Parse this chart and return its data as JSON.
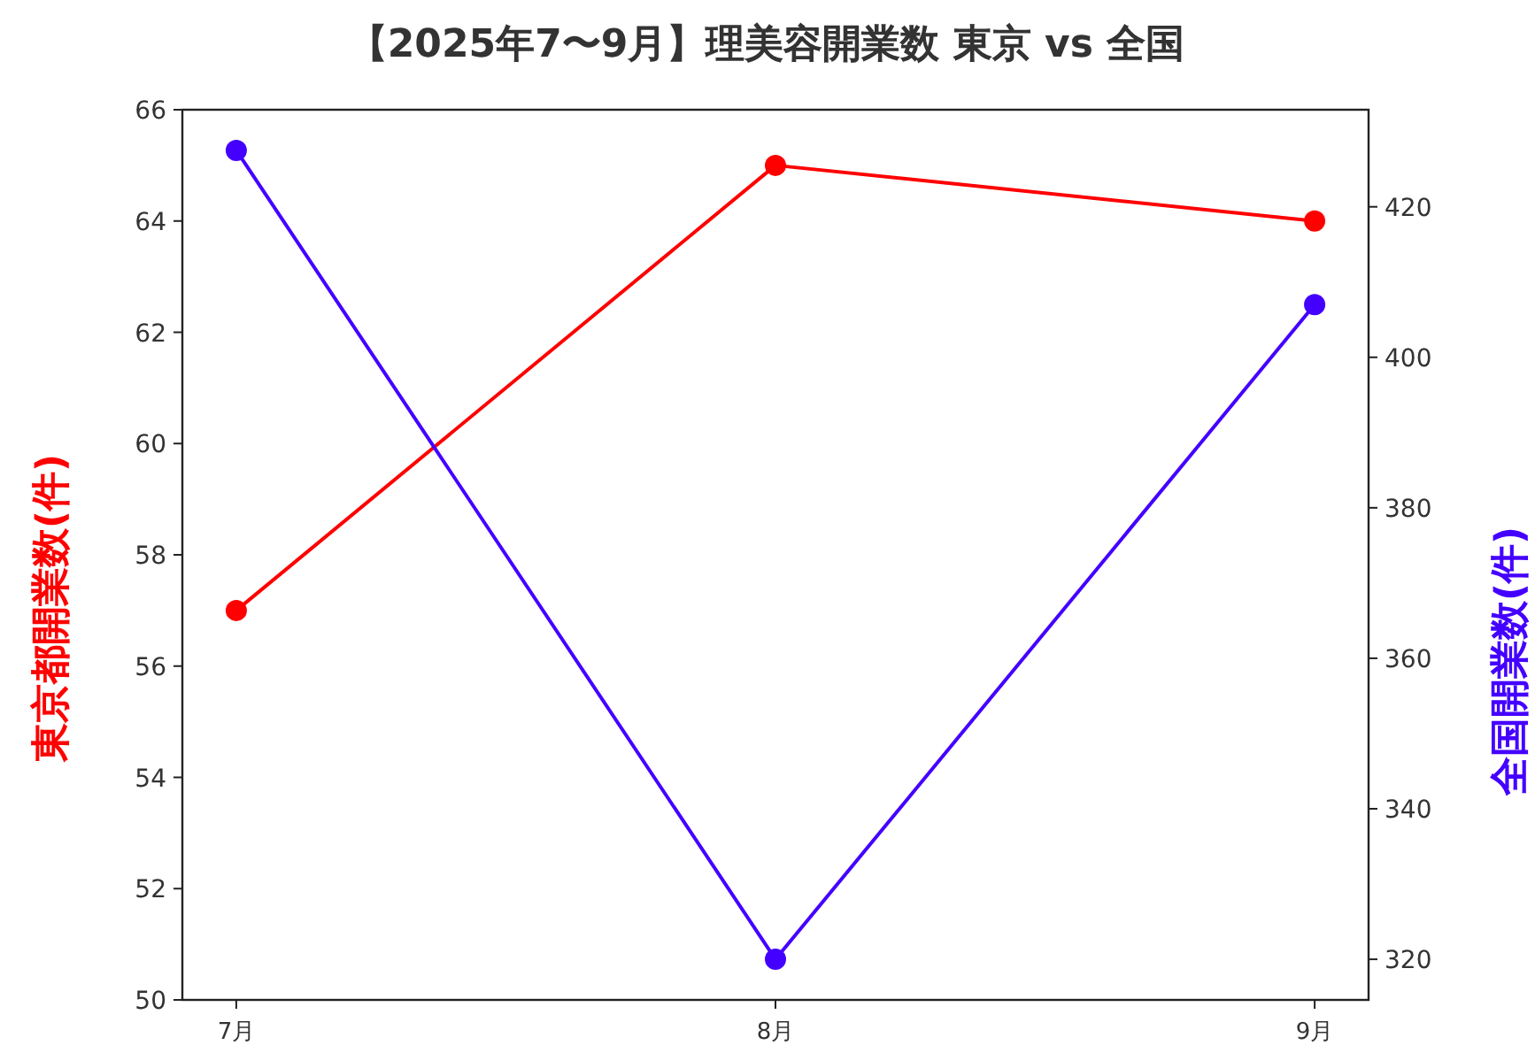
{
  "chart_data": {
    "type": "line",
    "title": "【2025年7〜9月】理美容開業数  東京 vs 全国",
    "categories": [
      "7月",
      "8月",
      "9月"
    ],
    "ylabel": "東京都開業数(件)",
    "y2label": "全国開業数(件)",
    "ylim": [
      50,
      66
    ],
    "yticks": [
      50,
      52,
      54,
      56,
      58,
      60,
      62,
      64,
      66
    ],
    "y2lim": [
      314.6,
      432.9
    ],
    "y2ticks": [
      320,
      340,
      360,
      380,
      400,
      420
    ],
    "marker": "circle",
    "line_style": "solid",
    "grid": false,
    "series": [
      {
        "color": "#ff0000",
        "values": [
          57,
          65,
          64
        ]
      },
      {
        "color": "#4400ff",
        "axis": "y2",
        "values": [
          427.5,
          320,
          407
        ]
      }
    ]
  }
}
